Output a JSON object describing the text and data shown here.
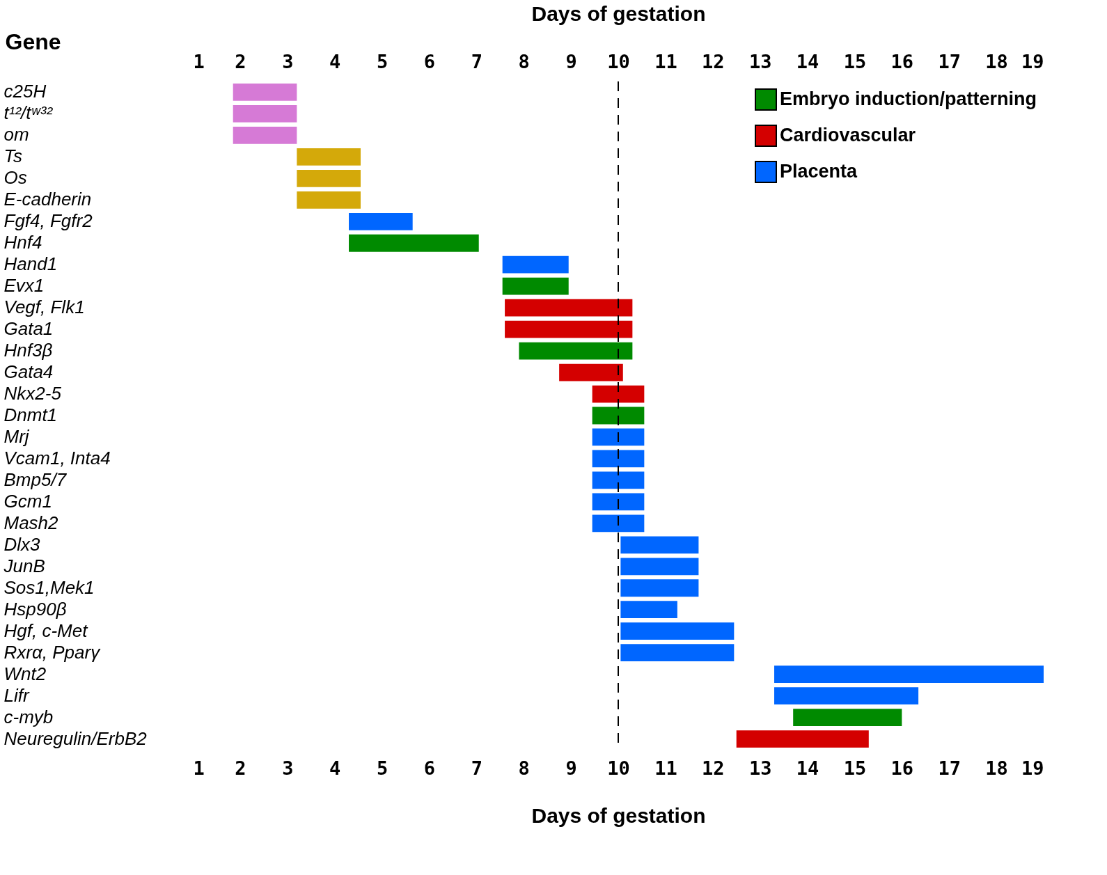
{
  "chart_data": {
    "type": "bar",
    "orientation": "horizontal",
    "xlabel": "Days of gestation",
    "x2label": "Days of gestation",
    "ylabel": "Gene",
    "categories": [
      "c25H",
      "t¹²/tʷ³²",
      "om",
      "Ts",
      "Os",
      "E-cadherin",
      "Fgf4, Fgfr2",
      "Hnf4",
      "Hand1",
      "Evx1",
      "Vegf, Flk1",
      "Gata1",
      "Hnf3β",
      "Gata4",
      "Nkx2-5",
      "Dnmt1",
      "Mrj",
      "Vcam1, Inta4",
      "Bmp5/7",
      "Gcm1",
      "Mash2",
      "Dlx3",
      "JunB",
      "Sos1,Mek1",
      "Hsp90β",
      "Hgf, c-Met",
      "Rxrα, Pparγ",
      "Wnt2",
      "Lifr",
      "c-myb",
      "Neuregulin/ErbB2"
    ],
    "xlim": [
      1,
      19
    ],
    "xticks": [
      1,
      2,
      3,
      4,
      5,
      6,
      7,
      8,
      9,
      10,
      11,
      12,
      13,
      14,
      15,
      16,
      17,
      18,
      19
    ],
    "x2lim": [
      1,
      19
    ],
    "x2ticks": [
      1,
      2,
      3,
      4,
      5,
      6,
      7,
      8,
      9,
      10,
      11,
      12,
      13,
      14,
      15,
      16,
      17,
      18,
      19
    ],
    "series": [
      {
        "color": "#d67ad6",
        "base": [
          1.85,
          1.85,
          1.85,
          null,
          null,
          null,
          null,
          null,
          null,
          null,
          null,
          null,
          null,
          null,
          null,
          null,
          null,
          null,
          null,
          null,
          null,
          null,
          null,
          null,
          null,
          null,
          null,
          null,
          null,
          null,
          null
        ],
        "values": [
          1.35,
          1.35,
          1.35,
          null,
          null,
          null,
          null,
          null,
          null,
          null,
          null,
          null,
          null,
          null,
          null,
          null,
          null,
          null,
          null,
          null,
          null,
          null,
          null,
          null,
          null,
          null,
          null,
          null,
          null,
          null,
          null
        ]
      },
      {
        "color": "#d4a90a",
        "base": [
          null,
          null,
          null,
          3.2,
          3.2,
          3.2,
          null,
          null,
          null,
          null,
          null,
          null,
          null,
          null,
          null,
          null,
          null,
          null,
          null,
          null,
          null,
          null,
          null,
          null,
          null,
          null,
          null,
          null,
          null,
          null,
          null
        ],
        "values": [
          null,
          null,
          null,
          1.35,
          1.35,
          1.35,
          null,
          null,
          null,
          null,
          null,
          null,
          null,
          null,
          null,
          null,
          null,
          null,
          null,
          null,
          null,
          null,
          null,
          null,
          null,
          null,
          null,
          null,
          null,
          null,
          null
        ]
      },
      {
        "name": "Embryo induction/patterning",
        "color": "#008a00",
        "base": [
          null,
          null,
          null,
          null,
          null,
          null,
          null,
          4.3,
          null,
          7.55,
          null,
          null,
          7.9,
          null,
          null,
          9.45,
          null,
          null,
          null,
          null,
          null,
          null,
          null,
          null,
          null,
          null,
          null,
          null,
          null,
          13.7,
          null
        ],
        "values": [
          null,
          null,
          null,
          null,
          null,
          null,
          null,
          2.75,
          null,
          1.4,
          null,
          null,
          2.4,
          null,
          null,
          1.1,
          null,
          null,
          null,
          null,
          null,
          null,
          null,
          null,
          null,
          null,
          null,
          null,
          null,
          2.3,
          null
        ]
      },
      {
        "name": "Cardiovascular",
        "color": "#d40000",
        "base": [
          null,
          null,
          null,
          null,
          null,
          null,
          null,
          null,
          null,
          null,
          7.6,
          7.6,
          null,
          8.75,
          9.45,
          null,
          null,
          null,
          null,
          null,
          null,
          null,
          null,
          null,
          null,
          null,
          null,
          null,
          null,
          null,
          12.5
        ],
        "values": [
          null,
          null,
          null,
          null,
          null,
          null,
          null,
          null,
          null,
          null,
          2.7,
          2.7,
          null,
          1.35,
          1.1,
          null,
          null,
          null,
          null,
          null,
          null,
          null,
          null,
          null,
          null,
          null,
          null,
          null,
          null,
          null,
          2.8
        ]
      },
      {
        "name": "Placenta",
        "color": "#0066ff",
        "base": [
          null,
          null,
          null,
          null,
          null,
          null,
          4.3,
          null,
          7.55,
          null,
          null,
          null,
          null,
          null,
          null,
          null,
          9.45,
          9.45,
          9.45,
          9.45,
          9.45,
          10.05,
          10.05,
          10.05,
          10.05,
          10.05,
          10.05,
          13.3,
          13.3,
          null,
          null
        ],
        "values": [
          null,
          null,
          null,
          null,
          null,
          null,
          1.35,
          null,
          1.4,
          null,
          null,
          null,
          null,
          null,
          null,
          null,
          1.1,
          1.1,
          1.1,
          1.1,
          1.1,
          1.65,
          1.65,
          1.65,
          1.2,
          2.4,
          2.4,
          5.7,
          3.05,
          null,
          null
        ]
      }
    ],
    "ref_lines": [
      {
        "axis": "x",
        "value": 10,
        "line_style": "dashed",
        "color": "#000000"
      }
    ],
    "legend": "top right",
    "grid": false
  }
}
